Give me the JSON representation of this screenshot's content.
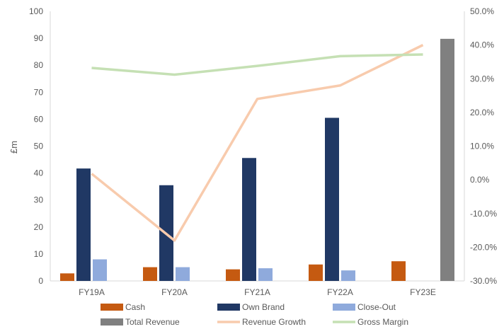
{
  "chart_data": {
    "type": "bar",
    "categories": [
      "FY19A",
      "FY20A",
      "FY21A",
      "FY22A",
      "FY23E"
    ],
    "ylabel": "£m",
    "ylim": [
      0,
      100
    ],
    "y_ticks": [
      0,
      10,
      20,
      30,
      40,
      50,
      60,
      70,
      80,
      90,
      100
    ],
    "y2lim": [
      -30,
      50
    ],
    "y2_ticks": [
      -30,
      -20,
      -10,
      0,
      10,
      20,
      30,
      40,
      50
    ],
    "y2_tick_labels": [
      "-30.0%",
      "-20.0%",
      "-10.0%",
      "0.0%",
      "10.0%",
      "20.0%",
      "30.0%",
      "40.0%",
      "50.0%"
    ],
    "grid": false,
    "legend_position": "bottom",
    "series": [
      {
        "name": "Cash",
        "kind": "bar",
        "axis": "left",
        "color": "#C55A11",
        "values": [
          2.8,
          5.1,
          4.3,
          6.1,
          7.3
        ]
      },
      {
        "name": "Own Brand",
        "kind": "bar",
        "axis": "left",
        "color": "#203864",
        "values": [
          41.7,
          35.5,
          45.6,
          60.5,
          null
        ]
      },
      {
        "name": "Close-Out",
        "kind": "bar",
        "axis": "left",
        "color": "#8FAADC",
        "values": [
          8.0,
          5.1,
          4.7,
          3.9,
          null
        ]
      },
      {
        "name": "Total Revenue",
        "kind": "bar",
        "axis": "left",
        "color": "#808080",
        "values": [
          null,
          null,
          null,
          null,
          89.8
        ]
      },
      {
        "name": "Revenue Growth",
        "kind": "line",
        "axis": "right",
        "color": "#F8CBAD",
        "values": [
          1.8,
          -18.0,
          24.0,
          28.0,
          40.0
        ]
      },
      {
        "name": "Gross Margin",
        "kind": "line",
        "axis": "right",
        "color": "#C5E0B4",
        "values": [
          33.2,
          31.2,
          33.8,
          36.7,
          37.2
        ]
      }
    ]
  }
}
